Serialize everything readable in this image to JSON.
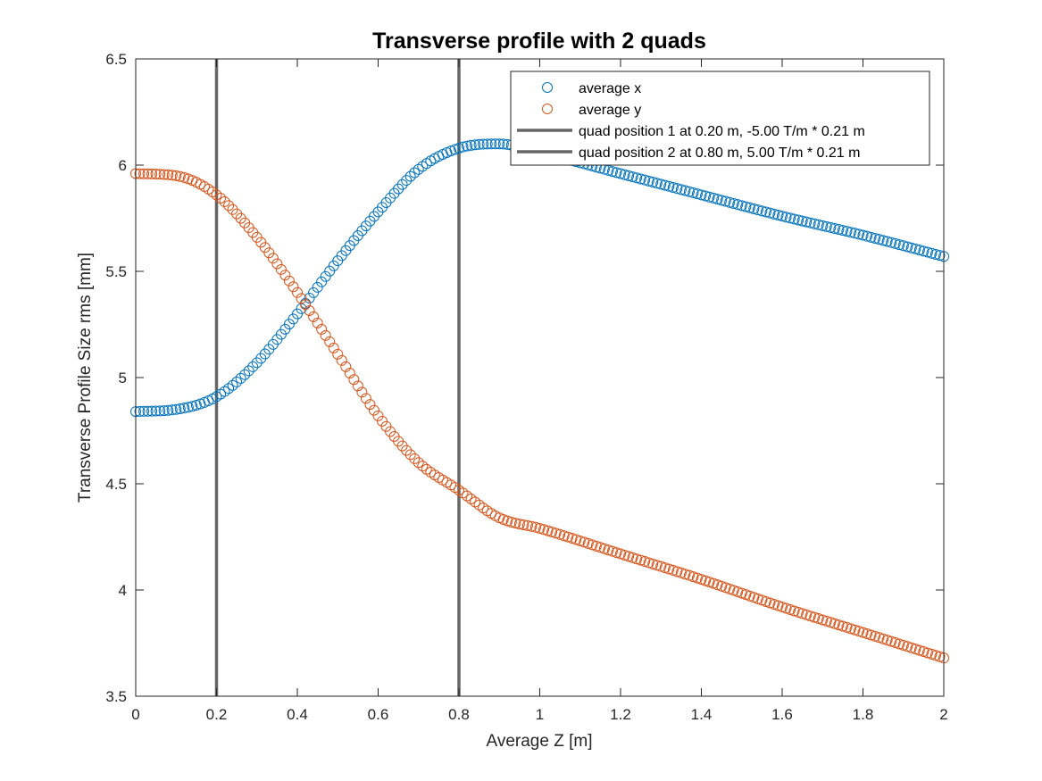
{
  "chart_data": {
    "type": "scatter",
    "title": "Transverse profile with 2 quads",
    "xlabel": "Average Z [m]",
    "ylabel": "Transverse Profile Size rms [mm]",
    "xlim": [
      0,
      2
    ],
    "ylim": [
      3.5,
      6.5
    ],
    "x_ticks": [
      "0",
      "0.2",
      "0.4",
      "0.6",
      "0.8",
      "1",
      "1.2",
      "1.4",
      "1.6",
      "1.8",
      "2"
    ],
    "y_ticks": [
      "3.5",
      "4",
      "4.5",
      "5",
      "5.5",
      "6",
      "6.5"
    ],
    "grid": false,
    "legend_position": "top-right",
    "x": [
      0,
      0.1,
      0.2,
      0.3,
      0.4,
      0.5,
      0.6,
      0.7,
      0.8,
      0.9,
      1.0,
      1.2,
      1.4,
      1.6,
      1.8,
      2.0
    ],
    "series": [
      {
        "name": "average x",
        "color": "#0072BD",
        "marker": "circle",
        "values": [
          4.84,
          4.85,
          4.91,
          5.07,
          5.3,
          5.55,
          5.78,
          5.98,
          6.08,
          6.1,
          6.06,
          5.96,
          5.86,
          5.76,
          5.67,
          5.57
        ]
      },
      {
        "name": "average y",
        "color": "#D95319",
        "marker": "circle",
        "values": [
          5.96,
          5.95,
          5.86,
          5.66,
          5.4,
          5.11,
          4.82,
          4.6,
          4.47,
          4.34,
          4.29,
          4.17,
          4.05,
          3.92,
          3.8,
          3.68
        ]
      }
    ],
    "vertical_lines": [
      {
        "name": "quad position 1 at 0.20 m, -5.00 T/m * 0.21 m",
        "x": 0.2,
        "color": "#666666"
      },
      {
        "name": "quad position 2 at 0.80 m, 5.00 T/m * 0.21 m",
        "x": 0.8,
        "color": "#666666"
      }
    ]
  }
}
